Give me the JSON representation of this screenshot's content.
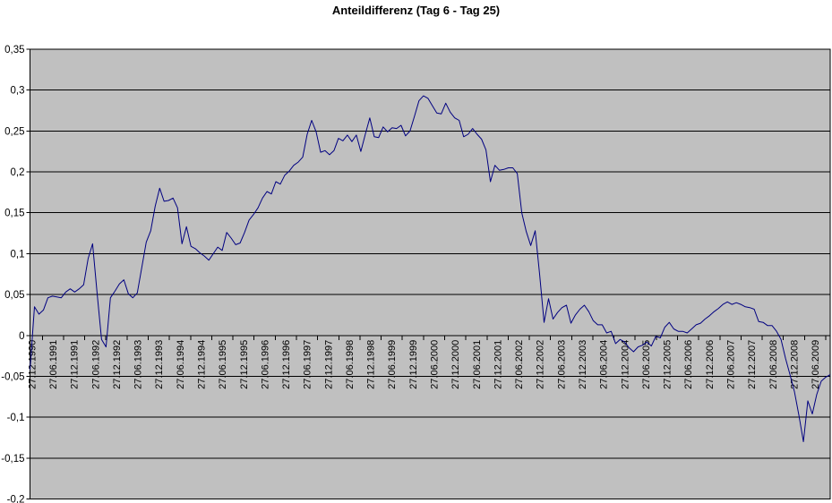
{
  "title": "Anteildifferenz (Tag 6 - Tag 25)",
  "chart_data": {
    "type": "line",
    "title": "Anteildifferenz (Tag 6 - Tag 25)",
    "legend": "none",
    "grid": "horizontal",
    "plot_bg": "#C0C0C0",
    "grid_color": "#000000",
    "line_color": "#000080",
    "ylim": [
      -0.2,
      0.35
    ],
    "y_ticks": [
      0.35,
      0.3,
      0.25,
      0.2,
      0.15,
      0.1,
      0.05,
      0,
      -0.05,
      -0.1,
      -0.15,
      -0.2
    ],
    "y_tick_labels": [
      "0,35",
      "0,3",
      "0,25",
      "0,2",
      "0,15",
      "0,1",
      "0,05",
      "0",
      "-0,05",
      "-0,1",
      "-0,15",
      "-0,2"
    ],
    "x_labels": [
      "27.12.1990",
      "27.06.1991",
      "27.12.1991",
      "27.06.1992",
      "27.12.1992",
      "27.06.1993",
      "27.12.1993",
      "27.06.1994",
      "27.12.1994",
      "27.06.1995",
      "27.12.1995",
      "27.06.1996",
      "27.12.1996",
      "27.06.1997",
      "27.12.1997",
      "27.06.1998",
      "27.12.1998",
      "27.06.1999",
      "27.12.1999",
      "27.06.2000",
      "27.12.2000",
      "27.06.2001",
      "27.12.2001",
      "27.06.2002",
      "27.12.2002",
      "27.06.2003",
      "27.12.2003",
      "27.06.2004",
      "27.12.2004",
      "27.06.2005",
      "27.12.2005",
      "27.06.2006",
      "27.12.2006",
      "27.06.2007",
      "27.12.2007",
      "27.06.2008",
      "27.12.2008",
      "27.06.2009"
    ],
    "values_note": "series sampled uniformly across the full x-axis from 27.12.1990 to mid-2009",
    "values": [
      -0.042,
      0.035,
      0.026,
      0.031,
      0.046,
      0.048,
      0.047,
      0.046,
      0.053,
      0.057,
      0.053,
      0.057,
      0.062,
      0.094,
      0.112,
      0.052,
      -0.005,
      -0.014,
      0.046,
      0.054,
      0.063,
      0.068,
      0.051,
      0.046,
      0.052,
      0.083,
      0.114,
      0.128,
      0.158,
      0.18,
      0.164,
      0.165,
      0.168,
      0.156,
      0.112,
      0.133,
      0.109,
      0.106,
      0.101,
      0.097,
      0.092,
      0.1,
      0.108,
      0.104,
      0.126,
      0.119,
      0.111,
      0.113,
      0.126,
      0.141,
      0.148,
      0.156,
      0.168,
      0.176,
      0.173,
      0.188,
      0.185,
      0.196,
      0.201,
      0.208,
      0.212,
      0.218,
      0.246,
      0.263,
      0.249,
      0.224,
      0.226,
      0.221,
      0.226,
      0.241,
      0.238,
      0.245,
      0.237,
      0.245,
      0.225,
      0.246,
      0.266,
      0.243,
      0.242,
      0.255,
      0.249,
      0.254,
      0.253,
      0.257,
      0.244,
      0.25,
      0.268,
      0.287,
      0.293,
      0.29,
      0.281,
      0.272,
      0.271,
      0.284,
      0.273,
      0.266,
      0.263,
      0.243,
      0.246,
      0.253,
      0.246,
      0.24,
      0.227,
      0.188,
      0.208,
      0.202,
      0.203,
      0.205,
      0.205,
      0.198,
      0.15,
      0.127,
      0.11,
      0.128,
      0.075,
      0.016,
      0.045,
      0.02,
      0.028,
      0.034,
      0.037,
      0.015,
      0.025,
      0.032,
      0.037,
      0.029,
      0.018,
      0.013,
      0.013,
      0.003,
      0.005,
      -0.01,
      -0.005,
      -0.008,
      -0.015,
      -0.02,
      -0.014,
      -0.012,
      -0.008,
      -0.013,
      -0.001,
      -0.003,
      0.01,
      0.016,
      0.008,
      0.005,
      0.005,
      0.003,
      0.008,
      0.013,
      0.015,
      0.02,
      0.024,
      0.029,
      0.033,
      0.038,
      0.041,
      0.038,
      0.04,
      0.038,
      0.035,
      0.034,
      0.032,
      0.017,
      0.016,
      0.012,
      0.012,
      0.005,
      -0.005,
      -0.028,
      -0.048,
      -0.069,
      -0.098,
      -0.13,
      -0.08,
      -0.096,
      -0.072,
      -0.056,
      -0.051,
      -0.048
    ]
  }
}
